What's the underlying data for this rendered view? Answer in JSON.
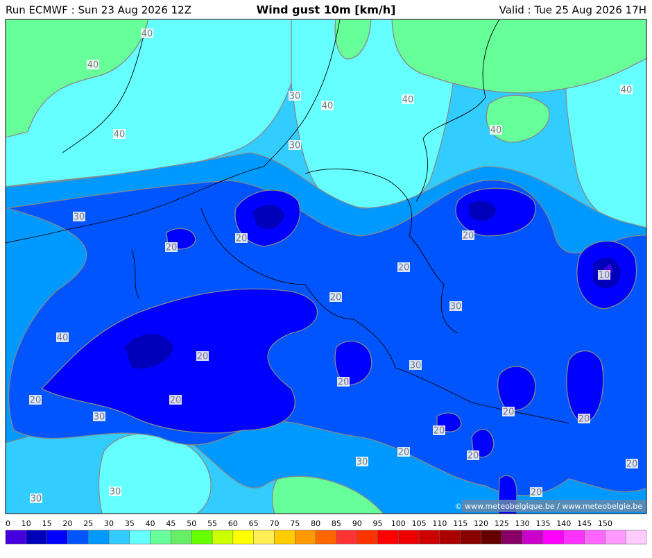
{
  "header": {
    "left": "Run ECMWF : Sun 23 Aug 2026 12Z",
    "title": "Wind gust 10m [km/h]",
    "right": "Valid : Tue 25 Aug 2026 17H"
  },
  "contour_labels": [
    "40",
    "40",
    "30",
    "40",
    "40",
    "40",
    "30",
    "40",
    "40",
    "30",
    "20",
    "20",
    "20",
    "20",
    "10",
    "20",
    "30",
    "40",
    "20",
    "30",
    "20",
    "20",
    "20",
    "20",
    "20",
    "30",
    "20",
    "20",
    "20",
    "30",
    "20",
    "30",
    "30",
    "20"
  ],
  "credit": "© www.meteobelgique.be / www.meteobelgie.be",
  "legend": {
    "ticks": [
      0,
      10,
      15,
      20,
      25,
      30,
      35,
      40,
      45,
      50,
      55,
      60,
      65,
      70,
      75,
      80,
      85,
      90,
      95,
      100,
      105,
      110,
      115,
      120,
      125,
      130,
      135,
      140,
      145,
      150
    ],
    "colors": [
      "#4400dd",
      "#0000bb",
      "#0000ff",
      "#0055ff",
      "#0099ff",
      "#33ccff",
      "#66ffff",
      "#66ff99",
      "#66ee66",
      "#66ff00",
      "#ccff00",
      "#ffff00",
      "#ffee55",
      "#ffcc00",
      "#ff9900",
      "#ff6600",
      "#ff3333",
      "#ff3300",
      "#ff0000",
      "#ee0000",
      "#cc0000",
      "#aa0000",
      "#880000",
      "#660000",
      "#880066",
      "#cc00cc",
      "#ff00ff",
      "#ff33ff",
      "#ff66ff",
      "#ff99ff",
      "#ffccff"
    ]
  }
}
